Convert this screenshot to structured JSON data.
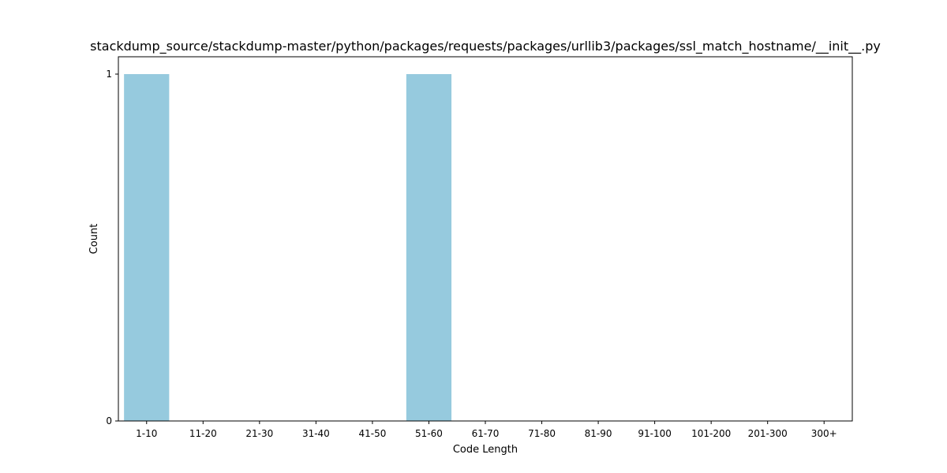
{
  "chart_data": {
    "type": "bar",
    "title": "stackdump_source/stackdump-master/python/packages/requests/packages/urllib3/packages/ssl_match_hostname/__init__.py",
    "xlabel": "Code Length",
    "ylabel": "Count",
    "categories": [
      "1-10",
      "11-20",
      "21-30",
      "31-40",
      "41-50",
      "51-60",
      "61-70",
      "71-80",
      "81-90",
      "91-100",
      "101-200",
      "201-300",
      "300+"
    ],
    "values": [
      1,
      0,
      0,
      0,
      0,
      1,
      0,
      0,
      0,
      0,
      0,
      0,
      0
    ],
    "ylim": [
      0,
      1
    ],
    "yticks": [
      0,
      1
    ],
    "bar_color": "#96cade",
    "grid": false,
    "legend": false
  }
}
